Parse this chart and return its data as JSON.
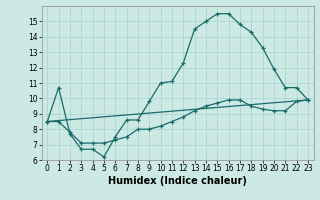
{
  "title": "",
  "xlabel": "Humidex (Indice chaleur)",
  "xlim": [
    -0.5,
    23.5
  ],
  "ylim": [
    6,
    16
  ],
  "yticks": [
    6,
    7,
    8,
    9,
    10,
    11,
    12,
    13,
    14,
    15
  ],
  "xticks": [
    0,
    1,
    2,
    3,
    4,
    5,
    6,
    7,
    8,
    9,
    10,
    11,
    12,
    13,
    14,
    15,
    16,
    17,
    18,
    19,
    20,
    21,
    22,
    23
  ],
  "bg_color": "#cce9e4",
  "grid_color": "#b0d8d4",
  "line_color": "#1a6b6b",
  "line1_x": [
    0,
    1,
    2,
    3,
    4,
    5,
    6,
    7,
    8,
    9,
    10,
    11,
    12,
    13,
    14,
    15,
    16,
    17,
    18,
    19,
    20,
    21,
    22,
    23
  ],
  "line1_y": [
    8.5,
    10.7,
    7.7,
    6.7,
    6.7,
    6.2,
    7.5,
    8.6,
    8.6,
    9.8,
    11.0,
    11.1,
    12.3,
    14.5,
    15.0,
    15.5,
    15.5,
    14.8,
    14.3,
    13.3,
    11.9,
    10.7,
    10.7,
    9.9
  ],
  "line2_x": [
    0,
    1,
    2,
    3,
    4,
    5,
    6,
    7,
    8,
    9,
    10,
    11,
    12,
    13,
    14,
    15,
    16,
    17,
    18,
    19,
    20,
    21,
    22,
    23
  ],
  "line2_y": [
    8.5,
    8.5,
    7.8,
    7.1,
    7.1,
    7.1,
    7.3,
    7.5,
    8.0,
    8.0,
    8.2,
    8.5,
    8.8,
    9.2,
    9.5,
    9.7,
    9.9,
    9.9,
    9.5,
    9.3,
    9.2,
    9.2,
    9.8,
    9.9
  ],
  "line3_x": [
    0,
    23
  ],
  "line3_y": [
    8.5,
    9.9
  ],
  "tick_fontsize": 5.5,
  "xlabel_fontsize": 7
}
